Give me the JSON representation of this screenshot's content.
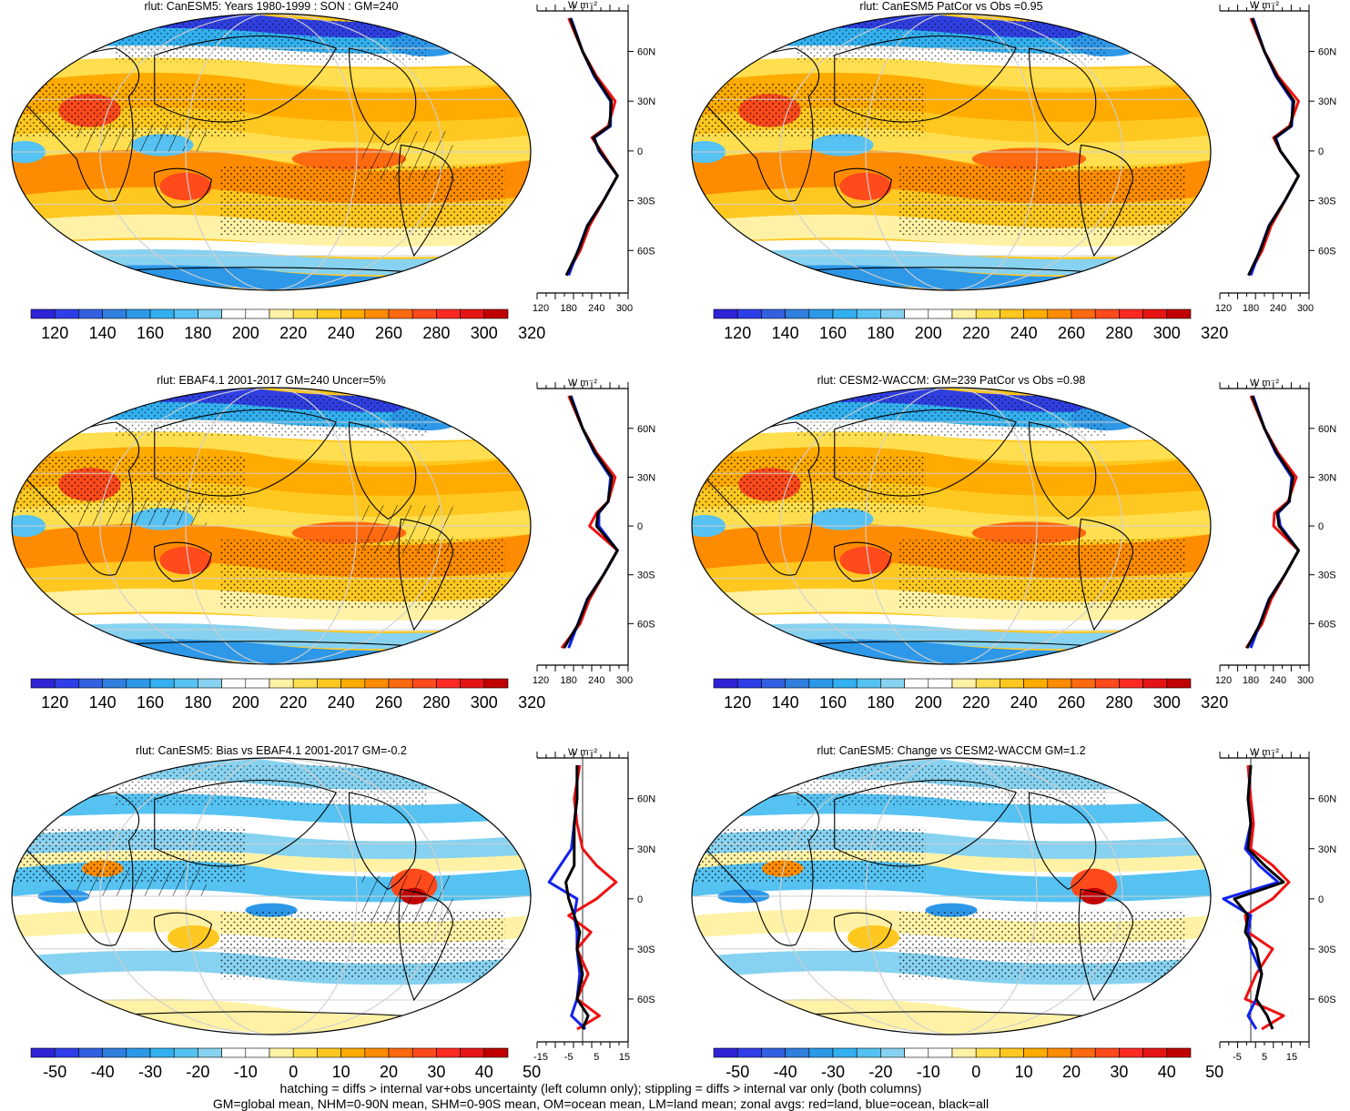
{
  "colors": {
    "abs_scale": [
      "#2f23d6",
      "#2e3ee8",
      "#3360e0",
      "#2f7fde",
      "#2d98e8",
      "#33b0ef",
      "#55c2f2",
      "#87d2f0",
      "#ffffff",
      "#ffffff",
      "#fff2a6",
      "#ffdf50",
      "#ffc820",
      "#ffab00",
      "#ff8c00",
      "#ff6a10",
      "#ff4a1c",
      "#ff2a22",
      "#e61515",
      "#c00000"
    ],
    "diff_scale": [
      "#2f23d6",
      "#2e3ee8",
      "#3360e0",
      "#2f7fde",
      "#2d98e8",
      "#33b0ef",
      "#55c2f2",
      "#87d2f0",
      "#ffffff",
      "#ffffff",
      "#fff2a6",
      "#ffdf50",
      "#ffc820",
      "#ffab00",
      "#ff8c00",
      "#ff6a10",
      "#ff4a1c",
      "#ff2a22",
      "#e61515",
      "#c00000"
    ],
    "land": "#ee1111",
    "ocean": "#1122ee",
    "all": "#000000"
  },
  "panels": [
    {
      "title": "rlut: CanESM5: Years 1980-1999 : SON : GM=240",
      "kind": "abs"
    },
    {
      "title": "rlut: CanESM5 PatCor vs Obs =0.95",
      "kind": "abs"
    },
    {
      "title": "rlut: EBAF4.1 2001-2017 GM=240 Uncer=5%",
      "kind": "abs"
    },
    {
      "title": "rlut: CESM2-WACCM: GM=239 PatCor vs Obs =0.98",
      "kind": "abs"
    },
    {
      "title": "rlut: CanESM5: Bias vs EBAF4.1 2001-2017  GM=-0.2",
      "kind": "diff"
    },
    {
      "title": "rlut: CanESM5: Change vs CESM2-WACCM GM=1.2",
      "kind": "diff"
    }
  ],
  "colorbars": {
    "abs_labels": [
      "120",
      "140",
      "160",
      "180",
      "200",
      "220",
      "240",
      "260",
      "280",
      "300",
      "320"
    ],
    "diff_labels": [
      "-50",
      "-40",
      "-30",
      "-20",
      "-10",
      "0",
      "10",
      "20",
      "30",
      "40",
      "50"
    ]
  },
  "zonal": {
    "unit": "W m⁻²",
    "lat_labels": [
      "60N",
      "30N",
      "0",
      "30S",
      "60S"
    ],
    "abs_x_labels": [
      "120",
      "180",
      "240",
      "300"
    ],
    "diff_left_x_labels": [
      "-15",
      "-5",
      "5",
      "15"
    ],
    "diff_right_x_labels": [
      "-5",
      "5",
      "15"
    ]
  },
  "footer": {
    "line1": "hatching = diffs > internal var+obs uncertainty (left column only); stippling = diffs > internal var only (both columns)",
    "line2": "GM=global mean, NHM=0-90N mean, SHM=0-90S mean, OM=ocean mean, LM=land mean; zonal avgs: red=land, blue=ocean, black=all"
  },
  "chart_data": [
    {
      "type": "heatmap",
      "title": "rlut: CanESM5: Years 1980-1999 : SON : GM=240",
      "zlim": [
        110,
        330
      ],
      "legend": "bottom",
      "zonal_profile": {
        "lat": [
          80,
          60,
          45,
          30,
          15,
          8,
          0,
          -15,
          -30,
          -45,
          -60,
          -75
        ],
        "land": [
          180,
          210,
          240,
          280,
          265,
          230,
          250,
          285,
          255,
          225,
          205,
          175
        ],
        "ocean": [
          185,
          210,
          235,
          270,
          270,
          235,
          245,
          285,
          255,
          220,
          200,
          180
        ],
        "all": [
          183,
          210,
          237,
          272,
          268,
          233,
          247,
          285,
          255,
          221,
          201,
          175
        ],
        "xlim": [
          120,
          300
        ]
      }
    },
    {
      "type": "heatmap",
      "title": "rlut: CanESM5 PatCor vs Obs =0.95",
      "zlim": [
        110,
        330
      ],
      "legend": "bottom",
      "zonal_profile": {
        "lat": [
          80,
          60,
          45,
          30,
          15,
          8,
          0,
          -15,
          -30,
          -45,
          -60,
          -75
        ],
        "land": [
          180,
          210,
          240,
          285,
          265,
          230,
          245,
          285,
          255,
          225,
          205,
          175
        ],
        "ocean": [
          185,
          210,
          235,
          272,
          270,
          235,
          245,
          285,
          255,
          220,
          200,
          180
        ],
        "all": [
          183,
          210,
          237,
          275,
          268,
          233,
          245,
          285,
          255,
          221,
          201,
          175
        ],
        "xlim": [
          120,
          300
        ]
      }
    },
    {
      "type": "heatmap",
      "title": "rlut: EBAF4.1 2001-2017 GM=240 Uncer=5%",
      "zlim": [
        110,
        330
      ],
      "legend": "bottom",
      "zonal_profile": {
        "lat": [
          80,
          60,
          45,
          30,
          15,
          8,
          0,
          -15,
          -30,
          -45,
          -60,
          -75
        ],
        "land": [
          180,
          210,
          240,
          280,
          265,
          240,
          225,
          285,
          255,
          225,
          205,
          165
        ],
        "ocean": [
          185,
          210,
          235,
          270,
          265,
          245,
          245,
          285,
          255,
          220,
          200,
          180
        ],
        "all": [
          183,
          210,
          237,
          273,
          265,
          243,
          240,
          285,
          255,
          221,
          201,
          170
        ],
        "xlim": [
          120,
          300
        ]
      }
    },
    {
      "type": "heatmap",
      "title": "rlut: CESM2-WACCM: GM=239 PatCor vs Obs =0.98",
      "zlim": [
        110,
        330
      ],
      "legend": "bottom",
      "zonal_profile": {
        "lat": [
          80,
          60,
          45,
          30,
          15,
          8,
          0,
          -15,
          -30,
          -45,
          -60,
          -75
        ],
        "land": [
          180,
          210,
          240,
          280,
          262,
          232,
          230,
          285,
          255,
          225,
          205,
          170
        ],
        "ocean": [
          185,
          210,
          235,
          270,
          265,
          240,
          245,
          285,
          255,
          220,
          200,
          180
        ],
        "all": [
          183,
          210,
          237,
          273,
          264,
          238,
          242,
          285,
          255,
          221,
          201,
          172
        ],
        "xlim": [
          120,
          300
        ]
      }
    },
    {
      "type": "heatmap",
      "title": "rlut: CanESM5: Bias vs EBAF4.1 2001-2017  GM=-0.2",
      "zlim": [
        -55,
        55
      ],
      "legend": "bottom",
      "zonal_profile": {
        "lat": [
          80,
          60,
          45,
          30,
          20,
          10,
          0,
          -10,
          -20,
          -30,
          -45,
          -60,
          -70,
          -78
        ],
        "land": [
          -1,
          -3,
          -2,
          0,
          5,
          12,
          5,
          -5,
          3,
          -2,
          2,
          -2,
          6,
          -2
        ],
        "ocean": [
          -2,
          -2,
          -3,
          -4,
          -8,
          -12,
          -2,
          -3,
          -2,
          -2,
          -1,
          -2,
          -4,
          1
        ],
        "all": [
          -2,
          -2,
          -3,
          -3,
          -3,
          -6,
          -5,
          -3,
          -1,
          -2,
          0,
          -2,
          2,
          0
        ],
        "xlim": [
          -15,
          15
        ]
      }
    },
    {
      "type": "heatmap",
      "title": "rlut: CanESM5: Change vs CESM2-WACCM GM=1.2",
      "zlim": [
        -55,
        55
      ],
      "legend": "bottom",
      "zonal_profile": {
        "lat": [
          80,
          60,
          45,
          30,
          20,
          10,
          0,
          -10,
          -20,
          -30,
          -45,
          -60,
          -70,
          -78
        ],
        "land": [
          -1,
          0,
          1,
          0,
          8,
          14,
          8,
          -2,
          -1,
          8,
          2,
          -2,
          12,
          4
        ],
        "ocean": [
          0,
          -1,
          0,
          -2,
          3,
          10,
          -10,
          0,
          -1,
          0,
          4,
          2,
          -1,
          2
        ],
        "all": [
          0,
          -1,
          0,
          -1,
          5,
          12,
          -6,
          -1,
          -2,
          2,
          4,
          2,
          6,
          8
        ],
        "xlim": [
          -10,
          20
        ]
      }
    }
  ]
}
